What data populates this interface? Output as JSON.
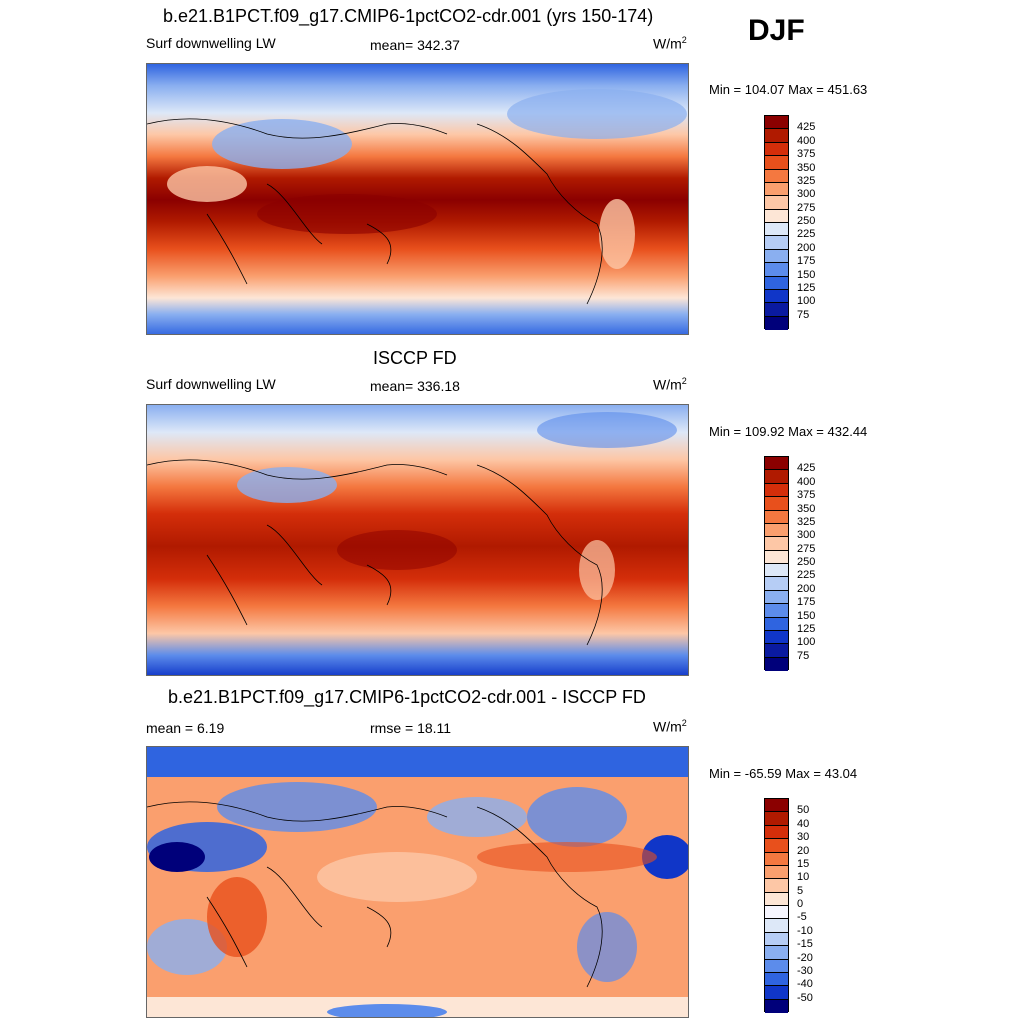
{
  "header": {
    "season": "DJF"
  },
  "panels": [
    {
      "title": "b.e21.B1PCT.f09_g17.CMIP6-1pctCO2-cdr.001 (yrs 150-174)",
      "left_label": "Surf downwelling LW",
      "center_label": "mean= 342.37",
      "units_base": "W/m",
      "units_exp": "2",
      "minmax": "Min = 104.07 Max = 451.63",
      "colorbar_ticks": [
        "425",
        "400",
        "375",
        "350",
        "325",
        "300",
        "275",
        "250",
        "225",
        "200",
        "175",
        "150",
        "125",
        "100",
        "75"
      ]
    },
    {
      "title": "ISCCP FD",
      "left_label": "Surf downwelling LW",
      "center_label": "mean= 336.18",
      "units_base": "W/m",
      "units_exp": "2",
      "minmax": "Min = 109.92 Max = 432.44",
      "colorbar_ticks": [
        "425",
        "400",
        "375",
        "350",
        "325",
        "300",
        "275",
        "250",
        "225",
        "200",
        "175",
        "150",
        "125",
        "100",
        "75"
      ]
    },
    {
      "title": "b.e21.B1PCT.f09_g17.CMIP6-1pctCO2-cdr.001 - ISCCP FD",
      "left_label": "mean =   6.19",
      "center_label": "rmse =  18.11",
      "units_base": "W/m",
      "units_exp": "2",
      "minmax": "Min = -65.59 Max =  43.04",
      "colorbar_ticks": [
        "50",
        "40",
        "30",
        "20",
        "15",
        "10",
        "5",
        "0",
        "-5",
        "-10",
        "-15",
        "-20",
        "-30",
        "-40",
        "-50"
      ]
    }
  ],
  "colors": {
    "abs_scale": [
      "#8b0000",
      "#b01a00",
      "#d42e0a",
      "#e8501c",
      "#f47840",
      "#fa9f6e",
      "#fdc7a6",
      "#fde6d6",
      "#dde8f8",
      "#b6cdf5",
      "#8aaff0",
      "#5c8ceb",
      "#2f64e0",
      "#1036c8",
      "#0a1aa0",
      "#00007a"
    ],
    "diff_scale": [
      "#8b0000",
      "#b01a00",
      "#d42e0a",
      "#e8501c",
      "#f47840",
      "#fa9f6e",
      "#fdc7a6",
      "#fde6d6",
      "#f6f6ff",
      "#dde8f8",
      "#b6cdf5",
      "#8aaff0",
      "#5c8ceb",
      "#2f64e0",
      "#1036c8",
      "#00007a"
    ],
    "coast": "#000000"
  }
}
